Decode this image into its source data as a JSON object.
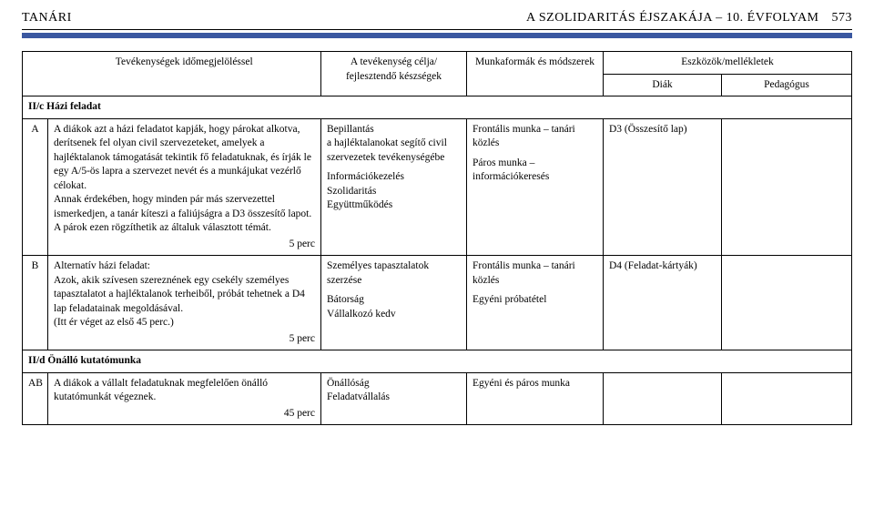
{
  "header": {
    "left": "TANÁRI",
    "right_title": "A SZOLIDARITÁS ÉJSZAKÁJA – 10. ÉVFOLYAM",
    "page_number": "573"
  },
  "colors": {
    "rule": "#3a57a0",
    "border": "#000000",
    "background": "#ffffff"
  },
  "table": {
    "head": {
      "c1": "",
      "c2": "Tevékenységek időmegjelöléssel",
      "c3": "A tevékenység célja/\nfejlesztendő készségek",
      "c4": "Munkaformák és módszerek",
      "tools_group": "Eszközök/mellékletek",
      "c5": "Diák",
      "c6": "Pedagógus"
    },
    "section1": "II/c Házi feladat",
    "rowA": {
      "code": "A",
      "activity_p1": "A diákok azt a házi feladatot kapják, hogy párokat alkotva, derítsenek fel olyan civil szervezeteket, amelyek a hajléktalanok támogatását tekintik fő feladatuknak, és írják le egy A/5-ös lapra a szervezet nevét és a munkájukat vezérlő célokat.",
      "activity_p2": "Annak érdekében, hogy minden pár más szervezettel ismerkedjen, a tanár kíteszi a faliújságra a D3 összesítő lapot. A párok ezen rögzíthetik az általuk választott témát.",
      "time": "5 perc",
      "goal_l1": "Bepillantás",
      "goal_l2": "a hajléktalanokat segítő civil szervezetek tevékenységébe",
      "goal_l3": "Információkezelés",
      "goal_l4": "Szolidaritás",
      "goal_l5": "Együttműködés",
      "method_l1": "Frontális munka – tanári közlés",
      "method_l2": "Páros munka – információkeresés",
      "diak": "D3 (Összesítő lap)",
      "ped": ""
    },
    "rowB": {
      "code": "B",
      "activity_p1": "Alternatív házi feladat:",
      "activity_p2": "Azok, akik szívesen szereznének egy csekély személyes tapasztalatot a hajléktalanok terheiből, próbát tehetnek a D4 lap feladatainak megoldásával.",
      "activity_p3": "(Itt ér véget az első 45 perc.)",
      "time": "5 perc",
      "goal_l1": "Személyes tapasztalatok szerzése",
      "goal_l2": "Bátorság",
      "goal_l3": "Vállalkozó kedv",
      "method_l1": "Frontális munka – tanári közlés",
      "method_l2": "Egyéni próbatétel",
      "diak": "D4 (Feladat-kártyák)",
      "ped": ""
    },
    "section2": "II/d Önálló kutatómunka",
    "rowAB": {
      "code": "AB",
      "activity": "A diákok a vállalt feladatuknak megfelelően önálló kutatómunkát végeznek.",
      "time": "45 perc",
      "goal_l1": "Önállóság",
      "goal_l2": "Feladatvállalás",
      "method": "Egyéni és páros munka",
      "diak": "",
      "ped": ""
    }
  }
}
